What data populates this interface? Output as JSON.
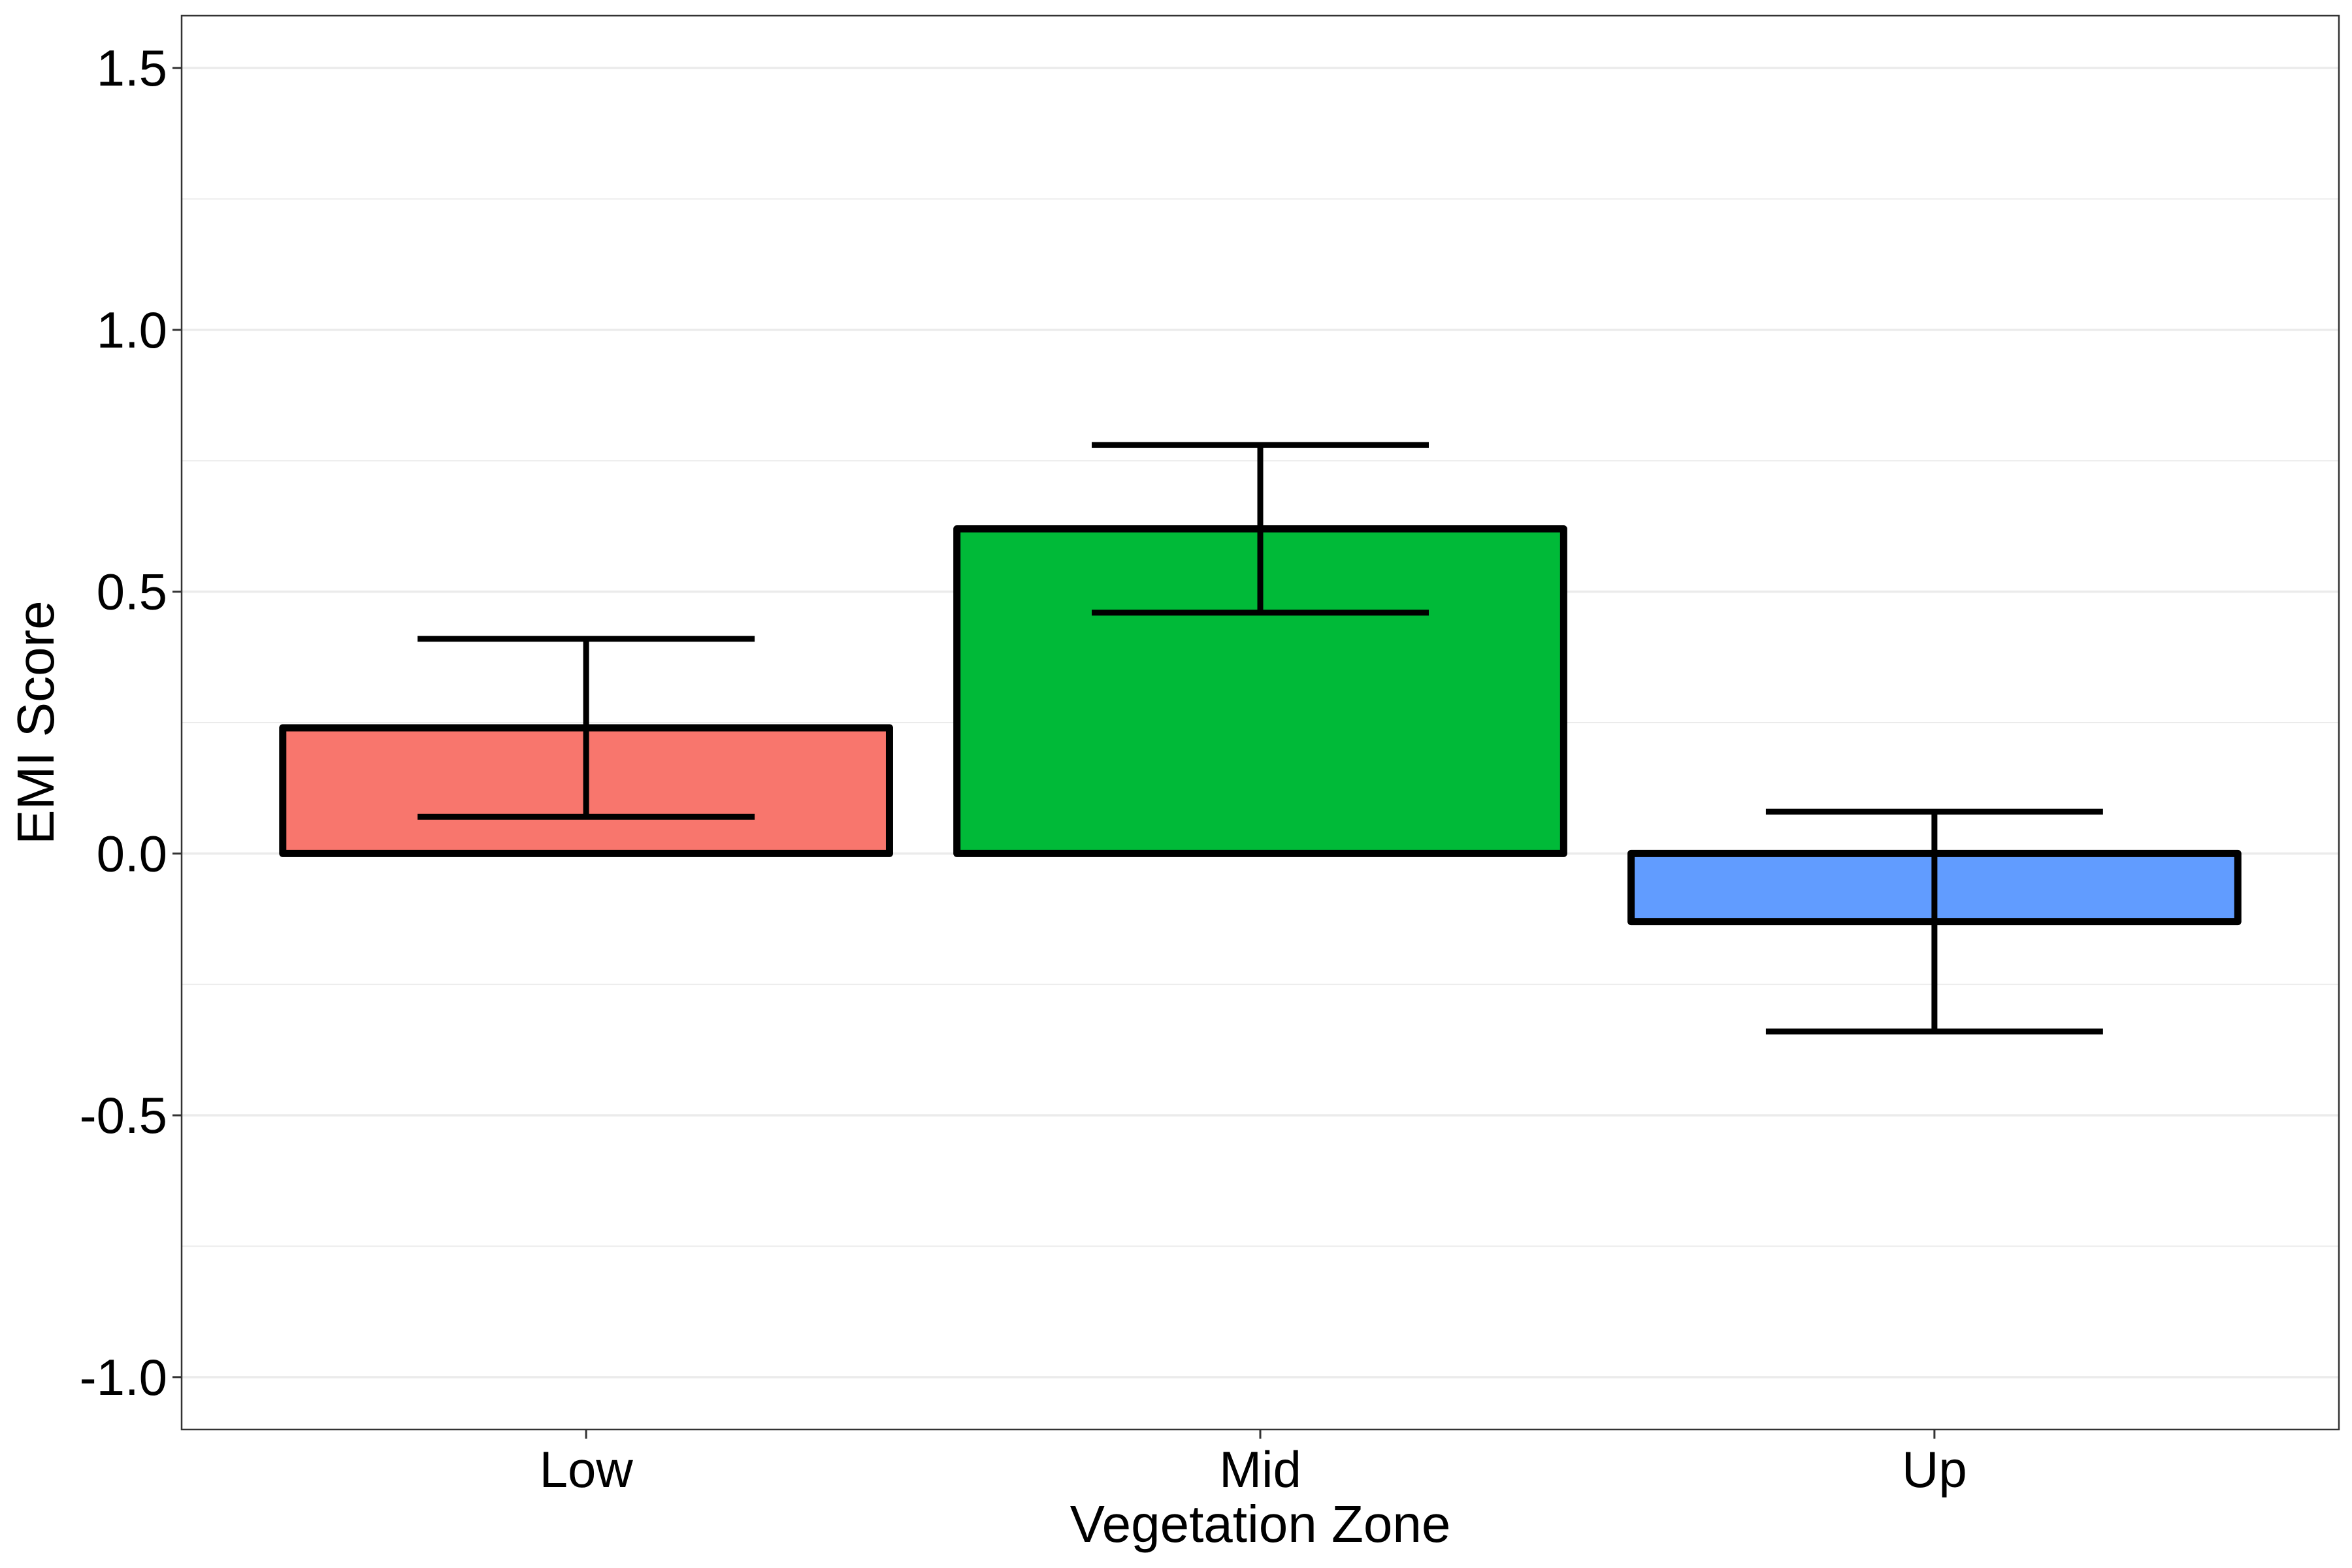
{
  "chart_data": {
    "type": "bar",
    "title": "",
    "xlabel": "Vegetation Zone",
    "ylabel": "EMI Score",
    "categories": [
      "Low",
      "Mid",
      "Up"
    ],
    "values": [
      0.24,
      0.62,
      -0.13
    ],
    "error_low": [
      0.07,
      0.46,
      -0.34
    ],
    "error_high": [
      0.41,
      0.78,
      0.08
    ],
    "colors": [
      "#F8766D",
      "#00BA38",
      "#619CFF"
    ],
    "ylim": [
      -1.1,
      1.6
    ],
    "y_ticks": [
      -1.0,
      -0.5,
      0.0,
      0.5,
      1.0,
      1.5
    ],
    "y_tick_labels": [
      "-1.0",
      "-0.5",
      "0.0",
      "0.5",
      "1.0",
      "1.5"
    ],
    "y_minor_ticks": [
      -0.75,
      -0.25,
      0.25,
      0.75,
      1.25
    ],
    "grid": true,
    "legend": "none"
  },
  "style": {
    "bar_outline_color": "#000000",
    "grid_color": "#ebebeb",
    "panel_border_color": "#333333"
  }
}
